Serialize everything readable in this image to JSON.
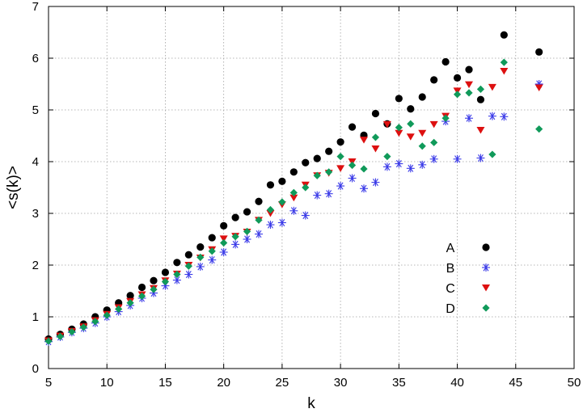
{
  "chart_data": {
    "type": "scatter",
    "xlabel": "k",
    "ylabel": "<s(k)>",
    "xlim": [
      5,
      50
    ],
    "ylim": [
      0,
      7
    ],
    "xticks": [
      5,
      10,
      15,
      20,
      25,
      30,
      35,
      40,
      45,
      50
    ],
    "yticks": [
      0,
      1,
      2,
      3,
      4,
      5,
      6,
      7
    ],
    "grid": true,
    "legend_position": "bottom-right",
    "series": [
      {
        "name": "A",
        "marker": "circle",
        "color": "#000000",
        "points": [
          [
            5,
            0.57
          ],
          [
            6,
            0.66
          ],
          [
            7,
            0.76
          ],
          [
            8,
            0.86
          ],
          [
            9,
            1.0
          ],
          [
            10,
            1.13
          ],
          [
            11,
            1.27
          ],
          [
            12,
            1.41
          ],
          [
            13,
            1.57
          ],
          [
            14,
            1.7
          ],
          [
            15,
            1.86
          ],
          [
            16,
            2.05
          ],
          [
            17,
            2.2
          ],
          [
            18,
            2.35
          ],
          [
            19,
            2.53
          ],
          [
            20,
            2.76
          ],
          [
            21,
            2.92
          ],
          [
            22,
            3.03
          ],
          [
            23,
            3.23
          ],
          [
            24,
            3.55
          ],
          [
            25,
            3.62
          ],
          [
            26,
            3.8
          ],
          [
            27,
            3.98
          ],
          [
            28,
            4.06
          ],
          [
            29,
            4.2
          ],
          [
            30,
            4.38
          ],
          [
            31,
            4.67
          ],
          [
            32,
            4.51
          ],
          [
            33,
            4.93
          ],
          [
            34,
            4.73
          ],
          [
            35,
            5.22
          ],
          [
            36,
            5.02
          ],
          [
            37,
            5.25
          ],
          [
            38,
            5.58
          ],
          [
            39,
            5.93
          ],
          [
            40,
            5.62
          ],
          [
            41,
            5.78
          ],
          [
            42,
            5.2
          ],
          [
            44,
            6.45
          ],
          [
            47,
            6.12
          ]
        ]
      },
      {
        "name": "B",
        "marker": "asterisk",
        "color": "#3a3ae8",
        "points": [
          [
            5,
            0.52
          ],
          [
            6,
            0.61
          ],
          [
            7,
            0.7
          ],
          [
            8,
            0.78
          ],
          [
            9,
            0.88
          ],
          [
            10,
            1.0
          ],
          [
            11,
            1.1
          ],
          [
            12,
            1.22
          ],
          [
            13,
            1.36
          ],
          [
            14,
            1.46
          ],
          [
            15,
            1.6
          ],
          [
            16,
            1.71
          ],
          [
            17,
            1.82
          ],
          [
            18,
            1.97
          ],
          [
            19,
            2.1
          ],
          [
            20,
            2.25
          ],
          [
            21,
            2.4
          ],
          [
            22,
            2.5
          ],
          [
            23,
            2.6
          ],
          [
            24,
            2.78
          ],
          [
            25,
            2.82
          ],
          [
            26,
            3.05
          ],
          [
            27,
            2.96
          ],
          [
            28,
            3.35
          ],
          [
            29,
            3.38
          ],
          [
            30,
            3.53
          ],
          [
            31,
            3.68
          ],
          [
            32,
            3.48
          ],
          [
            33,
            3.6
          ],
          [
            34,
            3.9
          ],
          [
            35,
            3.96
          ],
          [
            36,
            3.87
          ],
          [
            37,
            3.94
          ],
          [
            38,
            4.05
          ],
          [
            39,
            4.78
          ],
          [
            40,
            4.05
          ],
          [
            41,
            4.84
          ],
          [
            42,
            4.07
          ],
          [
            43,
            4.88
          ],
          [
            44,
            4.87
          ],
          [
            47,
            5.5
          ]
        ]
      },
      {
        "name": "C",
        "marker": "triangle-down",
        "color": "#dd1010",
        "points": [
          [
            5,
            0.54
          ],
          [
            6,
            0.63
          ],
          [
            7,
            0.72
          ],
          [
            8,
            0.81
          ],
          [
            9,
            0.93
          ],
          [
            10,
            1.05
          ],
          [
            11,
            1.18
          ],
          [
            12,
            1.3
          ],
          [
            13,
            1.43
          ],
          [
            14,
            1.55
          ],
          [
            15,
            1.7
          ],
          [
            16,
            1.83
          ],
          [
            17,
            2.0
          ],
          [
            18,
            2.14
          ],
          [
            19,
            2.3
          ],
          [
            20,
            2.51
          ],
          [
            21,
            2.56
          ],
          [
            22,
            2.64
          ],
          [
            23,
            2.87
          ],
          [
            24,
            3.0
          ],
          [
            25,
            3.17
          ],
          [
            26,
            3.3
          ],
          [
            27,
            3.55
          ],
          [
            28,
            3.73
          ],
          [
            29,
            3.78
          ],
          [
            30,
            3.87
          ],
          [
            31,
            4.0
          ],
          [
            32,
            4.42
          ],
          [
            33,
            4.25
          ],
          [
            34,
            4.72
          ],
          [
            35,
            4.55
          ],
          [
            36,
            4.48
          ],
          [
            37,
            4.55
          ],
          [
            38,
            4.72
          ],
          [
            39,
            4.88
          ],
          [
            40,
            5.37
          ],
          [
            41,
            5.49
          ],
          [
            42,
            4.61
          ],
          [
            43,
            5.44
          ],
          [
            44,
            5.75
          ],
          [
            47,
            5.43
          ]
        ]
      },
      {
        "name": "D",
        "marker": "diamond",
        "color": "#109a5a",
        "points": [
          [
            5,
            0.53
          ],
          [
            6,
            0.62
          ],
          [
            7,
            0.71
          ],
          [
            8,
            0.8
          ],
          [
            9,
            0.91
          ],
          [
            10,
            1.03
          ],
          [
            11,
            1.15
          ],
          [
            12,
            1.27
          ],
          [
            13,
            1.4
          ],
          [
            14,
            1.53
          ],
          [
            15,
            1.68
          ],
          [
            16,
            1.82
          ],
          [
            17,
            1.98
          ],
          [
            18,
            2.15
          ],
          [
            19,
            2.27
          ],
          [
            20,
            2.43
          ],
          [
            21,
            2.55
          ],
          [
            22,
            2.65
          ],
          [
            23,
            2.87
          ],
          [
            24,
            3.07
          ],
          [
            25,
            3.22
          ],
          [
            26,
            3.4
          ],
          [
            27,
            3.5
          ],
          [
            28,
            3.73
          ],
          [
            29,
            3.8
          ],
          [
            30,
            4.1
          ],
          [
            31,
            3.93
          ],
          [
            32,
            3.86
          ],
          [
            33,
            4.47
          ],
          [
            34,
            4.1
          ],
          [
            35,
            4.66
          ],
          [
            36,
            4.73
          ],
          [
            37,
            4.3
          ],
          [
            38,
            4.37
          ],
          [
            39,
            4.84
          ],
          [
            40,
            5.3
          ],
          [
            41,
            5.33
          ],
          [
            42,
            5.4
          ],
          [
            43,
            4.14
          ],
          [
            44,
            5.92
          ],
          [
            47,
            4.63
          ]
        ]
      }
    ]
  }
}
